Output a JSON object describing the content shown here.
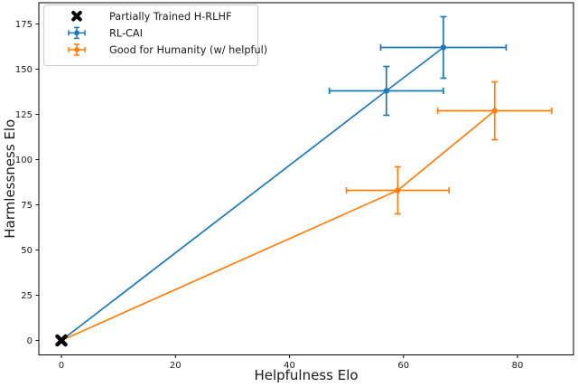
{
  "figure": {
    "background": "#ffffff"
  },
  "chart_data": {
    "type": "line",
    "title": "",
    "xlabel": "Helpfulness Elo",
    "ylabel": "Harmlessness Elo",
    "xlim": [
      -3.96,
      89.82
    ],
    "ylim": [
      -8,
      186.75
    ],
    "x_ticks": [
      0,
      20,
      40,
      60,
      80
    ],
    "y_ticks": [
      0,
      25,
      50,
      75,
      100,
      125,
      150,
      175
    ],
    "grid": false,
    "legend_position": "upper left",
    "axis_color": "#000000",
    "series": [
      {
        "name": "Partially Trained H-RLHF",
        "color": "#000000",
        "marker": "X",
        "line": false,
        "points": [
          {
            "x": 0,
            "y": 0,
            "xerr": 0,
            "yerr": 0
          }
        ]
      },
      {
        "name": "RL-CAI",
        "color": "#1f77b4",
        "marker": "o",
        "line": true,
        "points": [
          {
            "x": 0,
            "y": 0,
            "xerr": 0,
            "yerr": 0
          },
          {
            "x": 57,
            "y": 138,
            "xerr": 10,
            "yerr": 13.5
          },
          {
            "x": 67,
            "y": 162,
            "xerr": 11,
            "yerr": 17
          }
        ]
      },
      {
        "name": "Good for Humanity (w/ helpful)",
        "color": "#ff7f0e",
        "marker": "o",
        "line": true,
        "points": [
          {
            "x": 0,
            "y": 0,
            "xerr": 0,
            "yerr": 0
          },
          {
            "x": 59,
            "y": 83,
            "xerr": 9,
            "yerr": 13
          },
          {
            "x": 76,
            "y": 127,
            "xerr": 10,
            "yerr": 16
          }
        ]
      }
    ]
  }
}
